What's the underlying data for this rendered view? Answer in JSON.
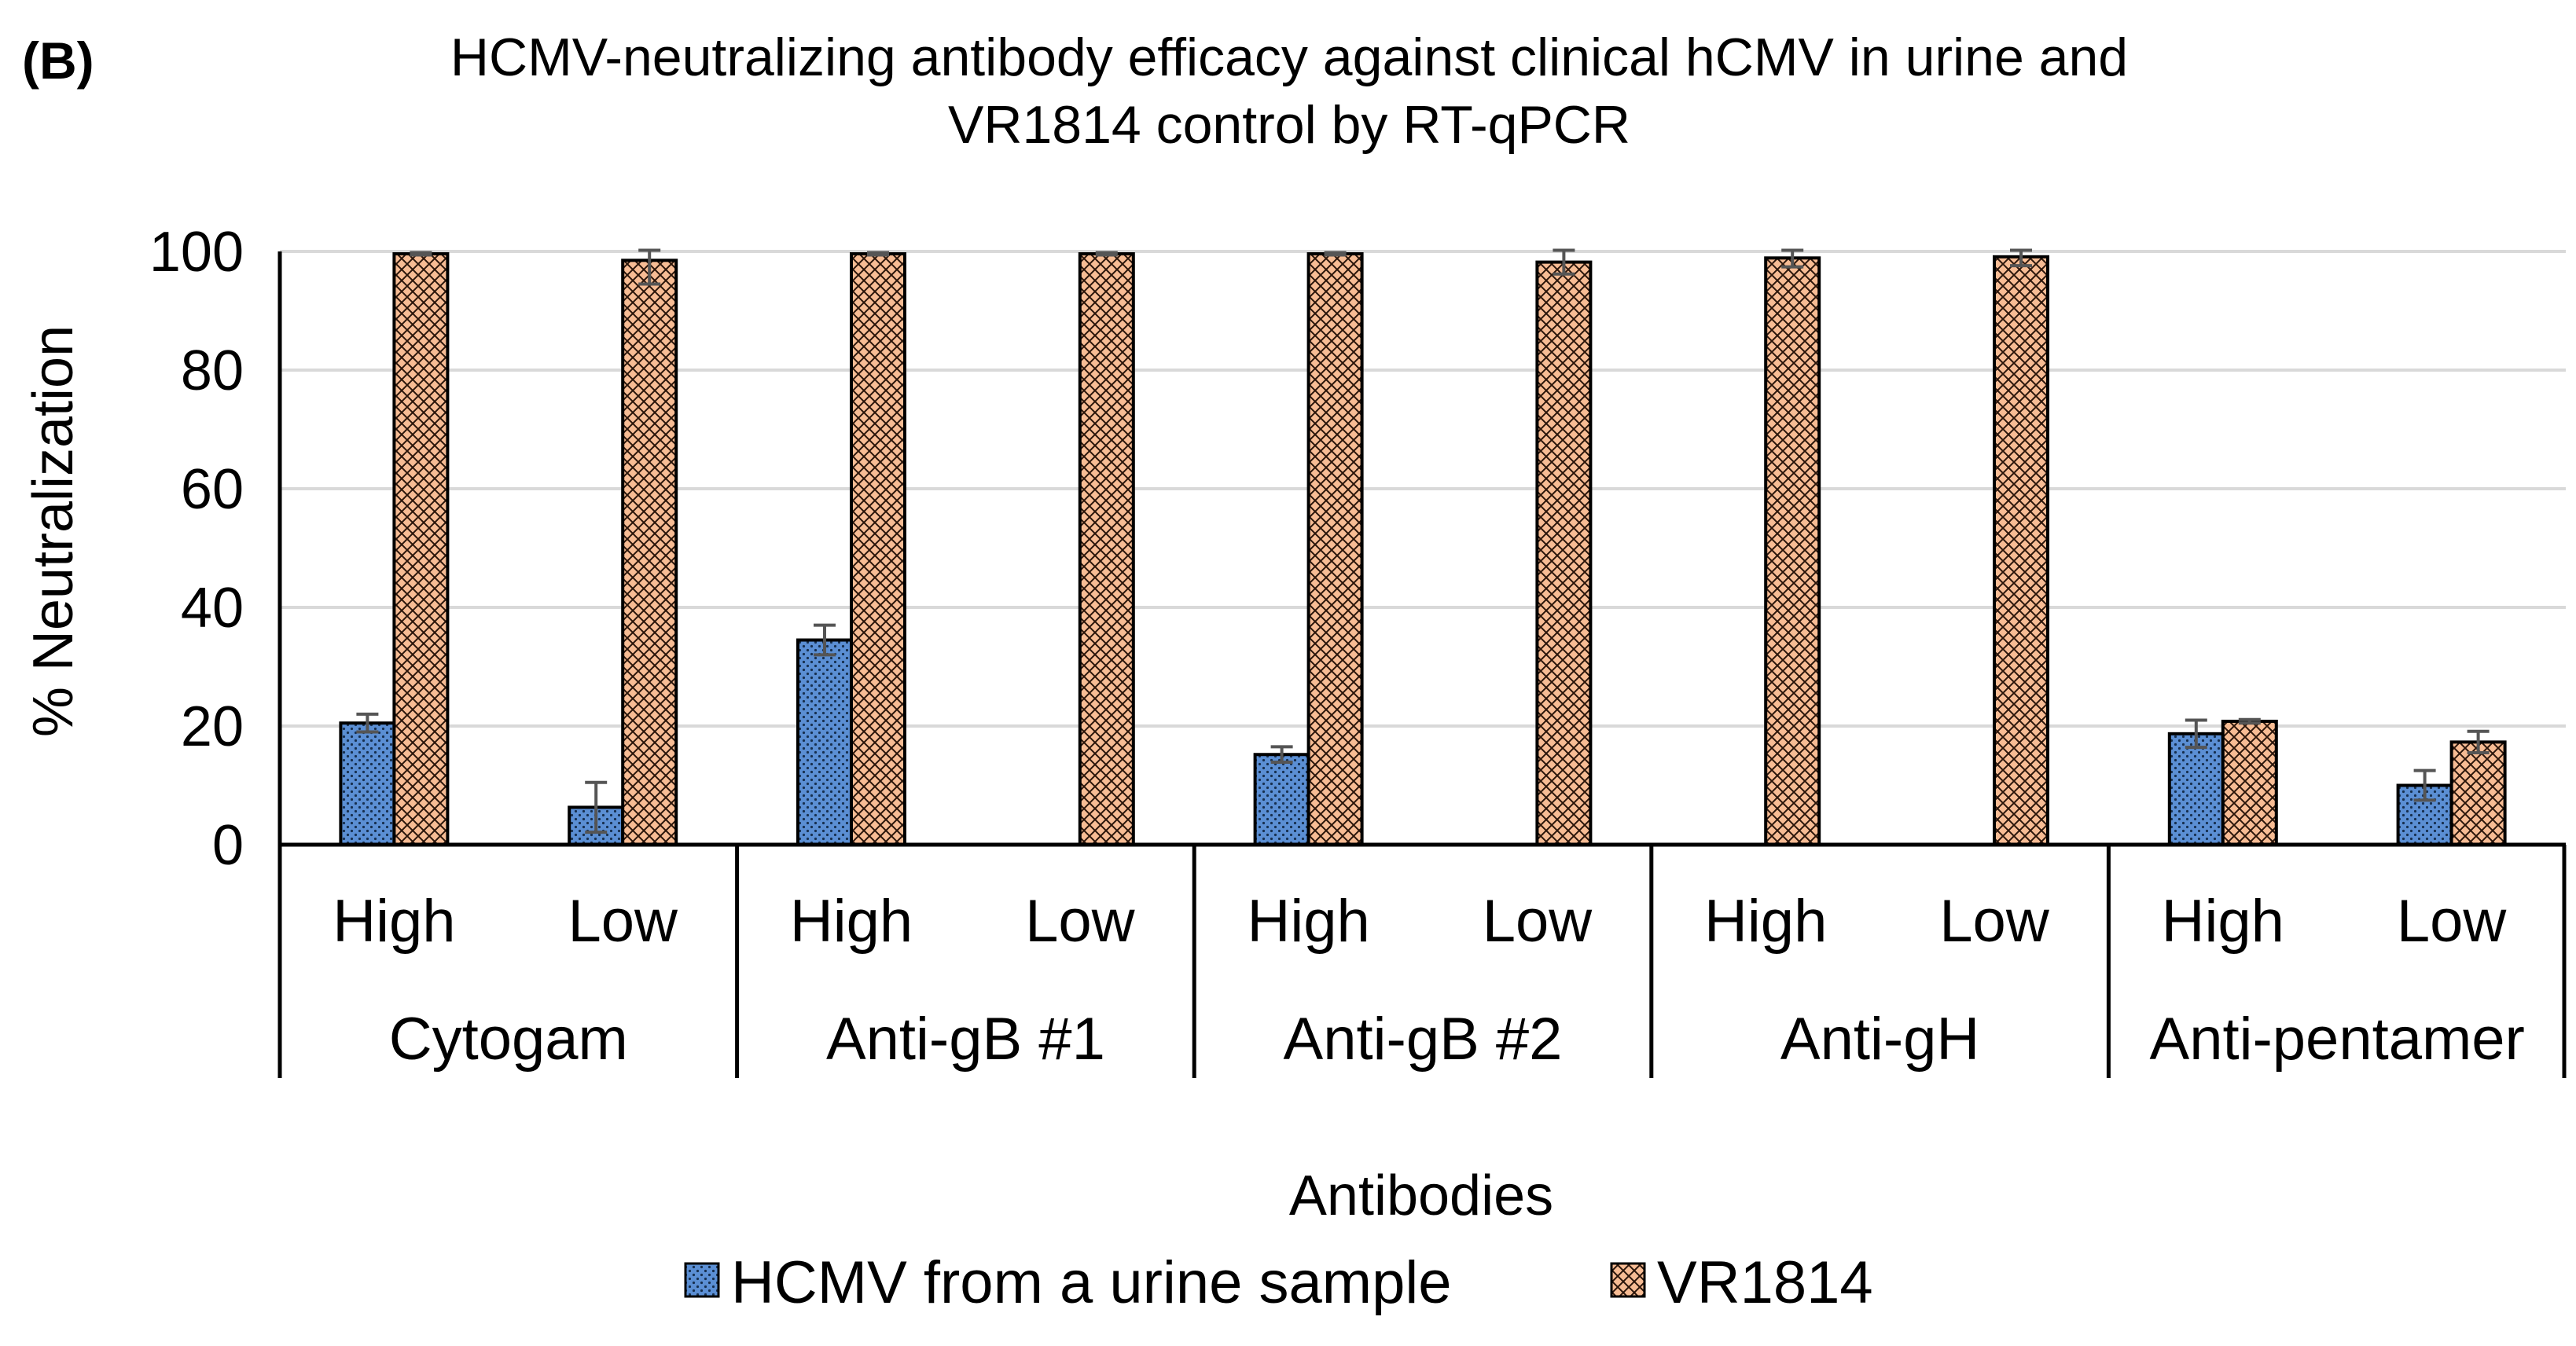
{
  "panel_label": "(B)",
  "chart_data": {
    "type": "bar",
    "title": "HCMV-neutralizing antibody efficacy against clinical hCMV in urine and VR1814 control by RT-qPCR",
    "title_lines": [
      "HCMV-neutralizing antibody efficacy against clinical hCMV in urine and",
      "VR1814 control by RT-qPCR"
    ],
    "xlabel": "Antibodies",
    "ylabel": "% Neutralization",
    "ylim": [
      0,
      100
    ],
    "yticks": [
      0,
      20,
      40,
      60,
      80,
      100
    ],
    "grid": true,
    "legend_position": "bottom",
    "groups": [
      {
        "label": "Cytogam",
        "subcategories": [
          "High",
          "Low"
        ]
      },
      {
        "label": "Anti-gB #1",
        "subcategories": [
          "High",
          "Low"
        ]
      },
      {
        "label": "Anti-gB #2",
        "subcategories": [
          "High",
          "Low"
        ]
      },
      {
        "label": "Anti-gH",
        "subcategories": [
          "High",
          "Low"
        ]
      },
      {
        "label": "Anti-pentamer",
        "subcategories": [
          "High",
          "Low"
        ]
      }
    ],
    "series": [
      {
        "name": "HCMV from a urine sample",
        "color": "#5b8fd4",
        "pattern": "dots",
        "values": [
          20.5,
          6.3,
          34.5,
          0,
          15.2,
          0,
          0,
          0,
          18.7,
          10.0
        ],
        "errors": [
          1.5,
          4.2,
          2.5,
          0,
          1.3,
          0,
          0,
          0,
          2.3,
          2.5
        ]
      },
      {
        "name": "VR1814",
        "color": "#f7bc94",
        "pattern": "crosshatch",
        "values": [
          99.6,
          98.5,
          99.6,
          99.6,
          99.6,
          98.2,
          98.9,
          99.1,
          20.8,
          17.3
        ],
        "errors": [
          0.2,
          4.0,
          0.2,
          0.2,
          0.2,
          2.0,
          1.5,
          1.5,
          0.3,
          1.8
        ]
      }
    ]
  }
}
